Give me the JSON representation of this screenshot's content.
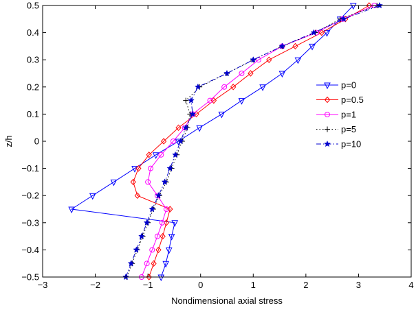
{
  "chart_data": {
    "type": "line",
    "title": "",
    "xlabel": "Nondimensional axial stress",
    "ylabel": "z/h",
    "xlim": [
      -3,
      4
    ],
    "ylim": [
      -0.5,
      0.5
    ],
    "xticks": [
      -3,
      -2,
      -1,
      0,
      1,
      2,
      3,
      4
    ],
    "xtick_labels": [
      "−3",
      "−2",
      "−1",
      "0",
      "1",
      "2",
      "3",
      "4"
    ],
    "yticks": [
      -0.5,
      -0.4,
      -0.3,
      -0.2,
      -0.1,
      0,
      0.1,
      0.2,
      0.3,
      0.4,
      0.5
    ],
    "ytick_labels": [
      "−0.5",
      "−0.4",
      "−0.3",
      "−0.2",
      "−0.1",
      "0",
      "0.1",
      "0.2",
      "0.3",
      "0.4",
      "0.5"
    ],
    "grid": false,
    "legend_position": "right",
    "series": [
      {
        "name": "p=0",
        "color": "#0000ff",
        "linestyle": "solid",
        "marker": "triangle-down",
        "points": [
          [
            -0.75,
            -0.5
          ],
          [
            -0.66,
            -0.45
          ],
          [
            -0.6,
            -0.4
          ],
          [
            -0.55,
            -0.35
          ],
          [
            -0.49,
            -0.3
          ],
          [
            -2.45,
            -0.25
          ],
          [
            -2.05,
            -0.2
          ],
          [
            -1.65,
            -0.15
          ],
          [
            -1.25,
            -0.1
          ],
          [
            -0.85,
            -0.05
          ],
          [
            -0.42,
            0
          ],
          [
            -0.02,
            0.05
          ],
          [
            0.4,
            0.1
          ],
          [
            0.78,
            0.15
          ],
          [
            1.18,
            0.2
          ],
          [
            1.55,
            0.25
          ],
          [
            1.85,
            0.3
          ],
          [
            2.12,
            0.35
          ],
          [
            2.4,
            0.4
          ],
          [
            2.65,
            0.45
          ],
          [
            2.9,
            0.5
          ]
        ]
      },
      {
        "name": "p=0.5",
        "color": "#ff0000",
        "linestyle": "solid",
        "marker": "diamond",
        "points": [
          [
            -0.98,
            -0.5
          ],
          [
            -0.89,
            -0.45
          ],
          [
            -0.8,
            -0.4
          ],
          [
            -0.72,
            -0.35
          ],
          [
            -0.65,
            -0.3
          ],
          [
            -0.58,
            -0.25
          ],
          [
            -1.2,
            -0.2
          ],
          [
            -1.28,
            -0.15
          ],
          [
            -1.18,
            -0.1
          ],
          [
            -0.98,
            -0.05
          ],
          [
            -0.7,
            0
          ],
          [
            -0.42,
            0.05
          ],
          [
            -0.08,
            0.1
          ],
          [
            0.25,
            0.15
          ],
          [
            0.62,
            0.2
          ],
          [
            0.95,
            0.25
          ],
          [
            1.3,
            0.3
          ],
          [
            1.8,
            0.35
          ],
          [
            2.3,
            0.4
          ],
          [
            2.75,
            0.45
          ],
          [
            3.2,
            0.5
          ]
        ]
      },
      {
        "name": "p=1",
        "color": "#ff00ff",
        "linestyle": "solid",
        "marker": "circle",
        "points": [
          [
            -1.12,
            -0.5
          ],
          [
            -1.02,
            -0.45
          ],
          [
            -0.92,
            -0.4
          ],
          [
            -0.82,
            -0.35
          ],
          [
            -0.73,
            -0.3
          ],
          [
            -0.65,
            -0.25
          ],
          [
            -0.82,
            -0.2
          ],
          [
            -1.0,
            -0.15
          ],
          [
            -0.95,
            -0.1
          ],
          [
            -0.75,
            -0.05
          ],
          [
            -0.52,
            0
          ],
          [
            -0.3,
            0.05
          ],
          [
            -0.15,
            0.1
          ],
          [
            0.18,
            0.15
          ],
          [
            0.45,
            0.2
          ],
          [
            0.78,
            0.25
          ],
          [
            1.1,
            0.3
          ],
          [
            1.55,
            0.35
          ],
          [
            2.2,
            0.4
          ],
          [
            2.7,
            0.45
          ],
          [
            3.3,
            0.5
          ]
        ]
      },
      {
        "name": "p=5",
        "color": "#000000",
        "linestyle": "dotted",
        "marker": "plus",
        "points": [
          [
            -1.4,
            -0.5
          ],
          [
            -1.3,
            -0.45
          ],
          [
            -1.2,
            -0.4
          ],
          [
            -1.1,
            -0.35
          ],
          [
            -1.0,
            -0.3
          ],
          [
            -0.9,
            -0.25
          ],
          [
            -0.78,
            -0.2
          ],
          [
            -0.65,
            -0.15
          ],
          [
            -0.55,
            -0.1
          ],
          [
            -0.45,
            -0.05
          ],
          [
            -0.35,
            0
          ],
          [
            -0.25,
            0.05
          ],
          [
            -0.2,
            0.1
          ],
          [
            -0.28,
            0.15
          ],
          [
            -0.02,
            0.2
          ],
          [
            0.5,
            0.25
          ],
          [
            1.0,
            0.3
          ],
          [
            1.55,
            0.35
          ],
          [
            2.18,
            0.4
          ],
          [
            2.65,
            0.45
          ],
          [
            3.35,
            0.5
          ]
        ]
      },
      {
        "name": "p=10",
        "color": "#0000cc",
        "linestyle": "dashdot",
        "marker": "star",
        "points": [
          [
            -1.42,
            -0.5
          ],
          [
            -1.32,
            -0.45
          ],
          [
            -1.22,
            -0.4
          ],
          [
            -1.12,
            -0.35
          ],
          [
            -1.02,
            -0.3
          ],
          [
            -0.92,
            -0.25
          ],
          [
            -0.8,
            -0.2
          ],
          [
            -0.68,
            -0.15
          ],
          [
            -0.58,
            -0.1
          ],
          [
            -0.48,
            -0.05
          ],
          [
            -0.38,
            0
          ],
          [
            -0.28,
            0.05
          ],
          [
            -0.15,
            0.1
          ],
          [
            -0.18,
            0.15
          ],
          [
            -0.05,
            0.2
          ],
          [
            0.5,
            0.25
          ],
          [
            1.0,
            0.3
          ],
          [
            1.55,
            0.35
          ],
          [
            2.15,
            0.4
          ],
          [
            2.72,
            0.45
          ],
          [
            3.4,
            0.5
          ]
        ]
      }
    ]
  }
}
